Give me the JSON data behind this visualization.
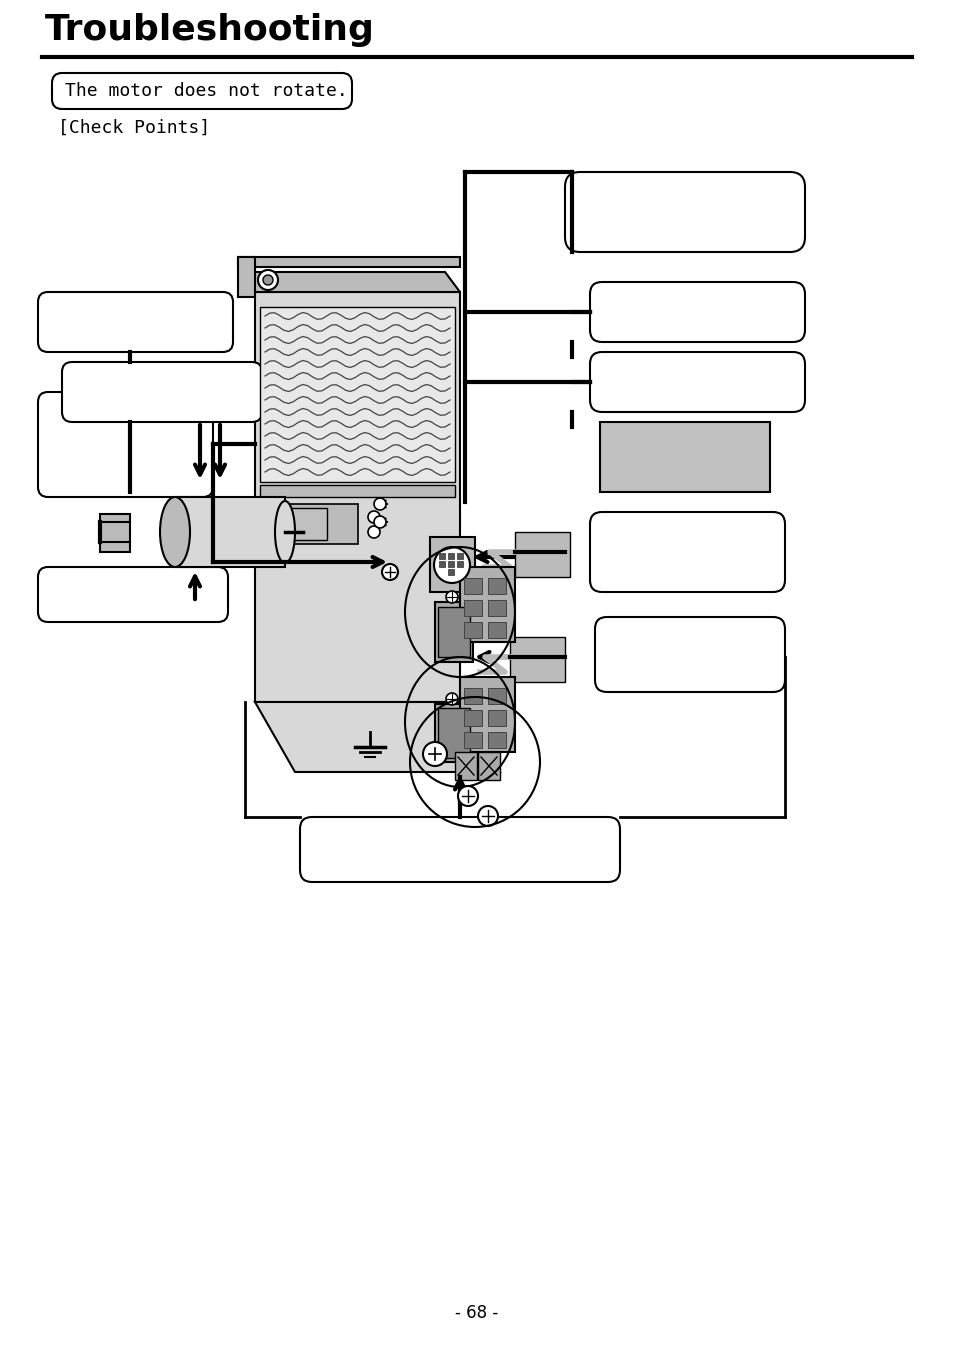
{
  "title": "Troubleshooting",
  "subtitle_box": "The motor does not rotate.",
  "check_points": "[Check Points]",
  "page_number": "- 68 -",
  "bg_color": "#ffffff",
  "line_color": "#000000",
  "box_fill": "#ffffff",
  "gray_light": "#d8d8d8",
  "gray_mid": "#bbbbbb",
  "gray_dark": "#999999",
  "title_fontsize": 26,
  "body_fontsize": 12,
  "lw_thick": 3.0,
  "lw_med": 2.0,
  "lw_thin": 1.5
}
